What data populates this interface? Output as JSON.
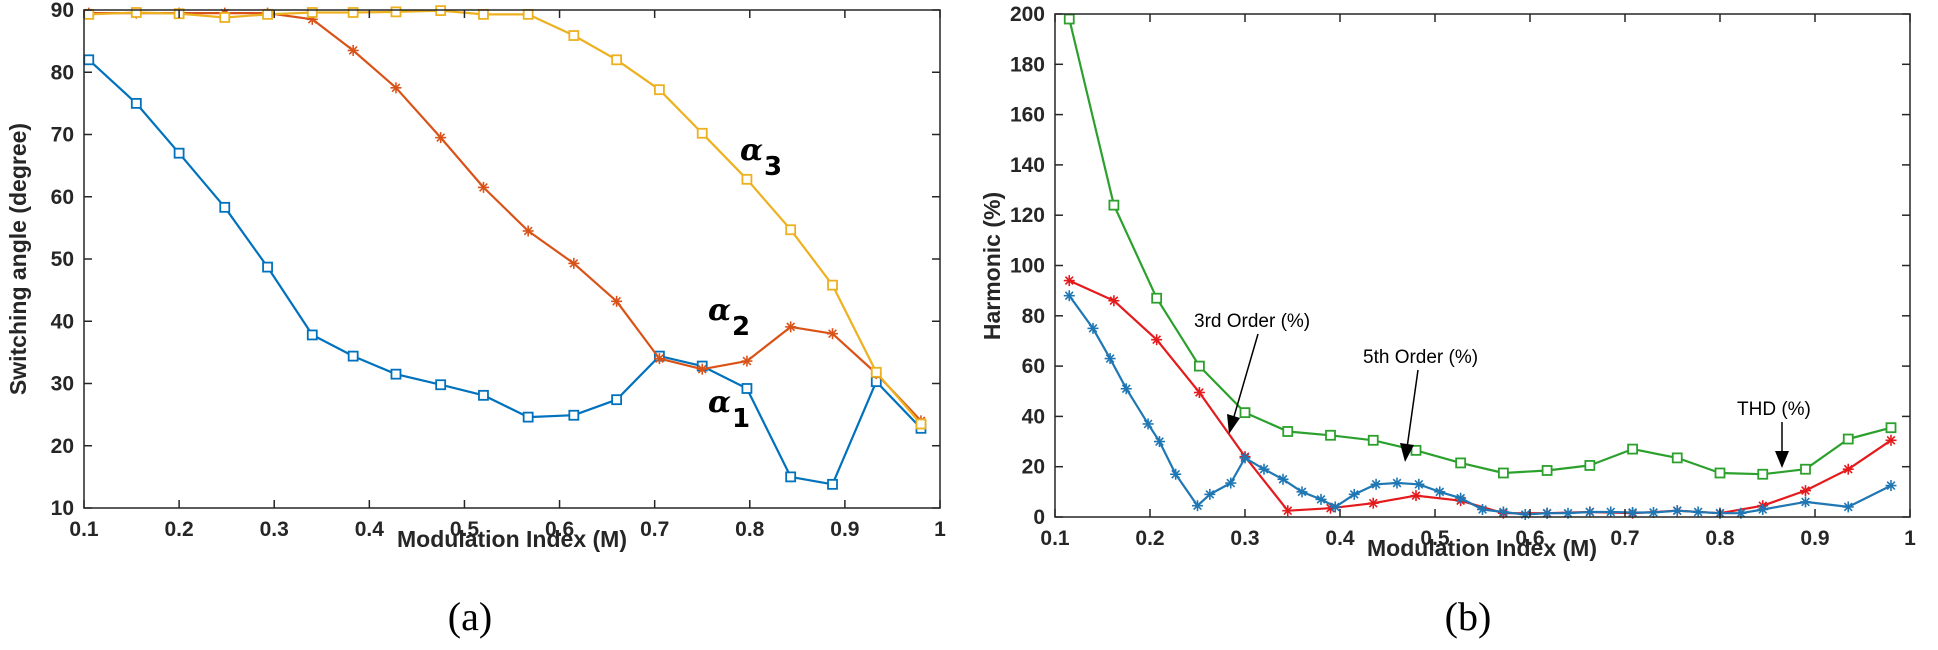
{
  "chart_data": [
    {
      "type": "line",
      "caption": "(a)",
      "xlabel": "Modulation Index (M)",
      "ylabel": "Switching angle (degree)",
      "xlim": [
        0.1,
        1.0
      ],
      "ylim": [
        10,
        90
      ],
      "xticks": [
        "0.1",
        "0.2",
        "0.3",
        "0.4",
        "0.5",
        "0.6",
        "0.7",
        "0.8",
        "0.9",
        "1"
      ],
      "yticks": [
        "10",
        "20",
        "30",
        "40",
        "50",
        "60",
        "70",
        "80",
        "90"
      ],
      "grid": false,
      "series": [
        {
          "name": "α1",
          "label_symbol": "α",
          "label_sub": "1",
          "color": "#0072BD",
          "marker": "square",
          "x": [
            0.105,
            0.155,
            0.2,
            0.248,
            0.293,
            0.34,
            0.383,
            0.428,
            0.475,
            0.52,
            0.567,
            0.615,
            0.66,
            0.705,
            0.75,
            0.797,
            0.843,
            0.887,
            0.933,
            0.98
          ],
          "y": [
            82,
            75,
            67,
            58.3,
            48.7,
            37.8,
            34.4,
            31.5,
            29.8,
            28.1,
            24.6,
            24.9,
            27.4,
            34.4,
            32.8,
            29.2,
            15,
            13.8,
            30.3,
            22.8
          ]
        },
        {
          "name": "α2",
          "label_symbol": "α",
          "label_sub": "2",
          "color": "#D95319",
          "marker": "asterisk",
          "x": [
            0.105,
            0.155,
            0.2,
            0.248,
            0.293,
            0.34,
            0.383,
            0.428,
            0.475,
            0.52,
            0.567,
            0.615,
            0.66,
            0.705,
            0.75,
            0.797,
            0.843,
            0.887,
            0.933,
            0.98
          ],
          "y": [
            89.5,
            89.5,
            89.5,
            89.5,
            89.5,
            88.5,
            83.5,
            77.5,
            69.5,
            61.5,
            54.5,
            49.3,
            43.2,
            34,
            32.3,
            33.6,
            39.1,
            38,
            31.6,
            24
          ]
        },
        {
          "name": "α3",
          "label_symbol": "α",
          "label_sub": "3",
          "color": "#EDB120",
          "marker": "square",
          "x": [
            0.105,
            0.155,
            0.2,
            0.248,
            0.293,
            0.34,
            0.383,
            0.428,
            0.475,
            0.52,
            0.567,
            0.615,
            0.66,
            0.705,
            0.75,
            0.797,
            0.843,
            0.887,
            0.933,
            0.98
          ],
          "y": [
            89.3,
            89.6,
            89.4,
            88.8,
            89.3,
            89.6,
            89.6,
            89.7,
            89.9,
            89.3,
            89.3,
            85.9,
            82,
            77.2,
            70.2,
            62.8,
            54.7,
            45.8,
            31.8,
            23.5
          ]
        }
      ]
    },
    {
      "type": "line",
      "caption": "(b)",
      "xlabel": "Modulation Index (M)",
      "ylabel": "Harmonic (%)",
      "xlim": [
        0.1,
        1.0
      ],
      "ylim": [
        0,
        200
      ],
      "xticks": [
        "0.1",
        "0.2",
        "0.3",
        "0.4",
        "0.5",
        "0.6",
        "0.7",
        "0.8",
        "0.9",
        "1"
      ],
      "yticks": [
        "0",
        "20",
        "40",
        "60",
        "80",
        "100",
        "120",
        "140",
        "160",
        "180",
        "200"
      ],
      "grid": false,
      "series": [
        {
          "name": "THD (%)",
          "color": "#2CA02C",
          "marker": "square",
          "x": [
            0.115,
            0.162,
            0.207,
            0.252,
            0.3,
            0.345,
            0.39,
            0.435,
            0.48,
            0.527,
            0.572,
            0.618,
            0.663,
            0.708,
            0.755,
            0.8,
            0.845,
            0.89,
            0.935,
            0.98
          ],
          "y": [
            198,
            124,
            87,
            60,
            41.5,
            34,
            32.5,
            30.5,
            26.5,
            21.5,
            17.5,
            18.5,
            20.5,
            27,
            23.5,
            17.5,
            17,
            19,
            31,
            35.5
          ]
        },
        {
          "name": "3rd Order (%)",
          "color": "#E41A1C",
          "marker": "asterisk",
          "x": [
            0.115,
            0.162,
            0.207,
            0.252,
            0.3,
            0.345,
            0.39,
            0.435,
            0.48,
            0.527,
            0.572,
            0.618,
            0.663,
            0.708,
            0.755,
            0.8,
            0.845,
            0.89,
            0.935,
            0.98
          ],
          "y": [
            94,
            86,
            70.5,
            49.5,
            24,
            2.5,
            3.5,
            5.5,
            8.5,
            6.5,
            1.5,
            1.5,
            2,
            1.5,
            2.5,
            1.5,
            4.5,
            10.5,
            19,
            30.5
          ]
        },
        {
          "name": "5th Order (%)",
          "color": "#1F77B4",
          "marker": "asterisk",
          "x": [
            0.115,
            0.14,
            0.158,
            0.175,
            0.198,
            0.21,
            0.227,
            0.25,
            0.263,
            0.285,
            0.3,
            0.32,
            0.34,
            0.36,
            0.38,
            0.395,
            0.415,
            0.438,
            0.46,
            0.483,
            0.505,
            0.527,
            0.55,
            0.572,
            0.595,
            0.618,
            0.64,
            0.663,
            0.685,
            0.708,
            0.73,
            0.755,
            0.777,
            0.8,
            0.822,
            0.845,
            0.89,
            0.935,
            0.98
          ],
          "y": [
            88,
            75,
            63,
            51,
            37,
            30,
            17,
            4.5,
            9,
            13.5,
            23.5,
            19,
            15,
            10,
            7,
            4,
            9,
            13,
            13.5,
            13,
            10,
            7.5,
            3,
            2,
            1,
            1.5,
            1.5,
            2,
            2,
            1.8,
            1.8,
            2.5,
            2,
            1.5,
            1.5,
            3,
            6,
            4,
            12.5
          ]
        }
      ],
      "annotations": [
        {
          "text": "3rd Order (%)",
          "x_value": 0.297,
          "y_value": 24
        },
        {
          "text": "5th Order (%)",
          "x_value": 0.46,
          "y_value": 13
        },
        {
          "text": "THD (%)",
          "x_value": 0.84,
          "y_value": 18
        }
      ]
    }
  ]
}
